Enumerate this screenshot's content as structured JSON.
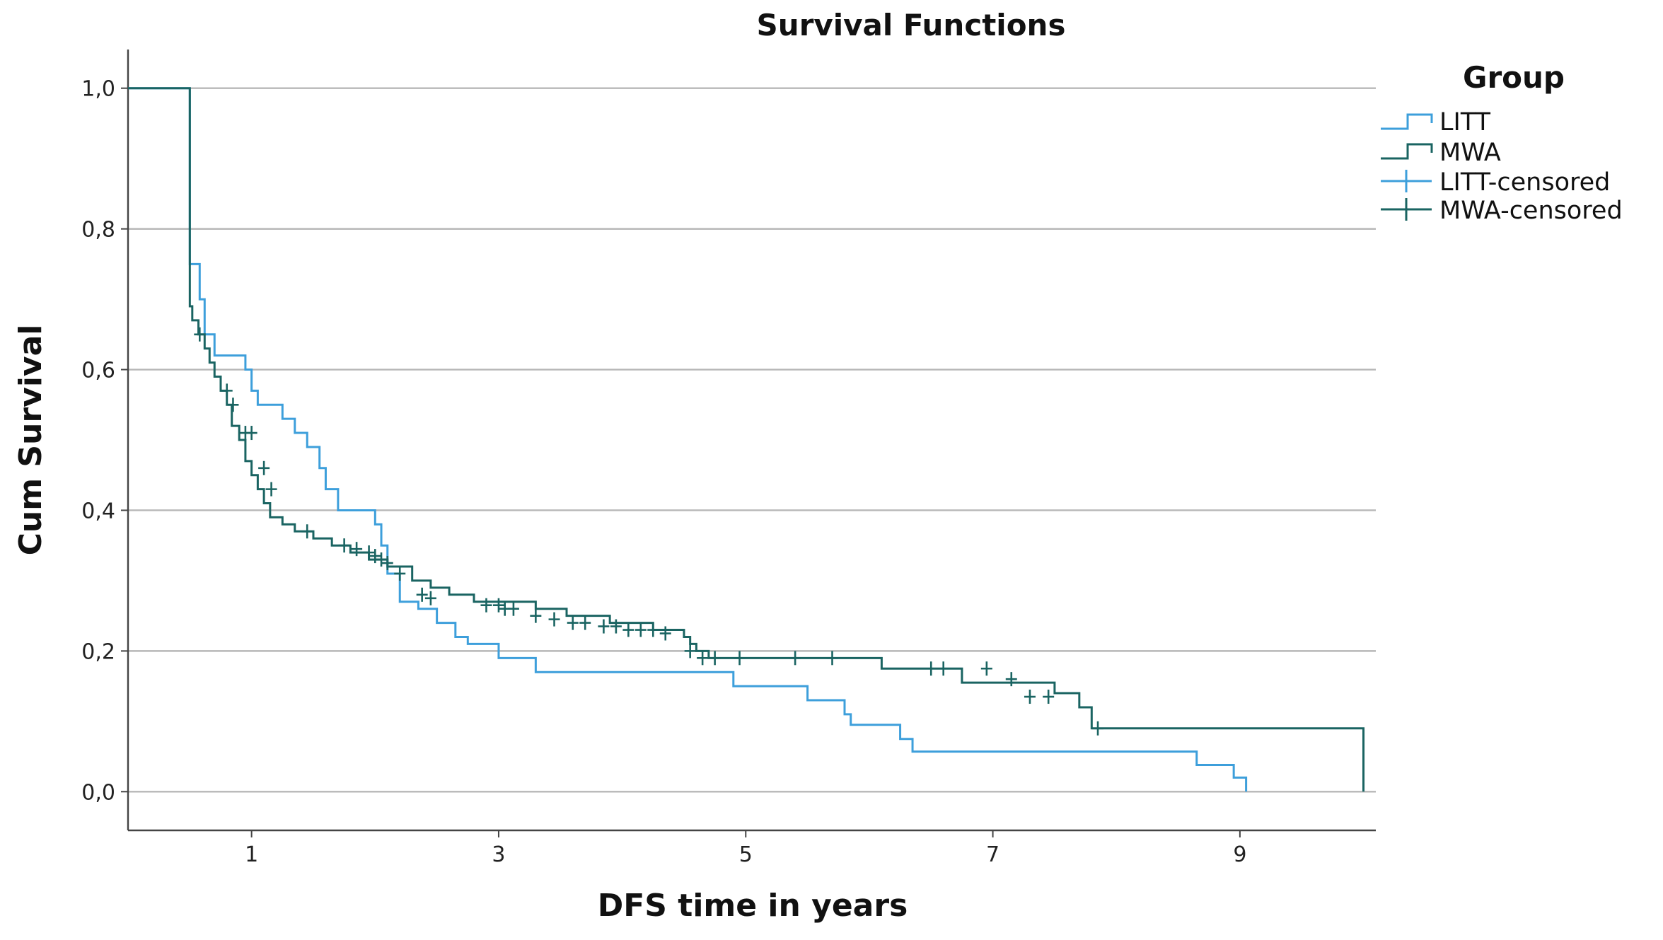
{
  "chart_data": {
    "type": "line",
    "title": "Survival Functions",
    "xlabel": "DFS time in years",
    "ylabel": "Cum Survival",
    "xlim": [
      0.0,
      10.1
    ],
    "ylim": [
      -0.055,
      1.055
    ],
    "x_ticks": [
      1,
      3,
      5,
      7,
      9
    ],
    "x_tick_labels": [
      "1",
      "3",
      "5",
      "7",
      "9"
    ],
    "y_ticks": [
      0.0,
      0.2,
      0.4,
      0.6,
      0.8,
      1.0
    ],
    "y_tick_labels": [
      "0,0",
      "0,2",
      "0,4",
      "0,6",
      "0,8",
      "1,0"
    ],
    "grid": "horizontal",
    "legend": {
      "title": "Group",
      "position": "right-top",
      "entries": [
        {
          "label": "LITT",
          "kind": "line",
          "series": "LITT"
        },
        {
          "label": "MWA",
          "kind": "line",
          "series": "MWA"
        },
        {
          "label": "LITT-censored",
          "kind": "censor",
          "series": "LITT"
        },
        {
          "label": "MWA-censored",
          "kind": "censor",
          "series": "MWA"
        }
      ]
    },
    "series": [
      {
        "name": "LITT",
        "color": "#3d9fdb",
        "steps": [
          [
            0.0,
            1.0
          ],
          [
            0.5,
            0.75
          ],
          [
            0.58,
            0.7
          ],
          [
            0.62,
            0.65
          ],
          [
            0.7,
            0.62
          ],
          [
            0.85,
            0.62
          ],
          [
            0.95,
            0.6
          ],
          [
            1.0,
            0.57
          ],
          [
            1.05,
            0.55
          ],
          [
            1.25,
            0.53
          ],
          [
            1.35,
            0.51
          ],
          [
            1.45,
            0.49
          ],
          [
            1.55,
            0.46
          ],
          [
            1.6,
            0.43
          ],
          [
            1.7,
            0.4
          ],
          [
            2.0,
            0.38
          ],
          [
            2.05,
            0.35
          ],
          [
            2.1,
            0.31
          ],
          [
            2.2,
            0.27
          ],
          [
            2.35,
            0.26
          ],
          [
            2.5,
            0.24
          ],
          [
            2.65,
            0.22
          ],
          [
            2.75,
            0.21
          ],
          [
            3.0,
            0.19
          ],
          [
            3.3,
            0.17
          ],
          [
            4.9,
            0.15
          ],
          [
            5.5,
            0.13
          ],
          [
            5.8,
            0.11
          ],
          [
            5.85,
            0.095
          ],
          [
            6.25,
            0.075
          ],
          [
            6.35,
            0.057
          ],
          [
            8.65,
            0.038
          ],
          [
            8.95,
            0.02
          ],
          [
            9.05,
            0.0
          ]
        ],
        "end_x": 9.05,
        "censored": []
      },
      {
        "name": "MWA",
        "color": "#1a6462",
        "steps": [
          [
            0.0,
            1.0
          ],
          [
            0.5,
            0.69
          ],
          [
            0.52,
            0.67
          ],
          [
            0.57,
            0.65
          ],
          [
            0.62,
            0.63
          ],
          [
            0.66,
            0.61
          ],
          [
            0.7,
            0.59
          ],
          [
            0.75,
            0.57
          ],
          [
            0.8,
            0.55
          ],
          [
            0.84,
            0.52
          ],
          [
            0.9,
            0.5
          ],
          [
            0.95,
            0.47
          ],
          [
            1.0,
            0.45
          ],
          [
            1.05,
            0.43
          ],
          [
            1.1,
            0.41
          ],
          [
            1.15,
            0.39
          ],
          [
            1.25,
            0.38
          ],
          [
            1.35,
            0.37
          ],
          [
            1.5,
            0.36
          ],
          [
            1.65,
            0.35
          ],
          [
            1.8,
            0.34
          ],
          [
            1.95,
            0.33
          ],
          [
            2.1,
            0.32
          ],
          [
            2.3,
            0.3
          ],
          [
            2.45,
            0.29
          ],
          [
            2.6,
            0.28
          ],
          [
            2.8,
            0.27
          ],
          [
            3.1,
            0.27
          ],
          [
            3.3,
            0.26
          ],
          [
            3.55,
            0.25
          ],
          [
            3.9,
            0.24
          ],
          [
            4.25,
            0.23
          ],
          [
            4.5,
            0.22
          ],
          [
            4.55,
            0.21
          ],
          [
            4.6,
            0.2
          ],
          [
            4.7,
            0.19
          ],
          [
            5.25,
            0.19
          ],
          [
            6.1,
            0.175
          ],
          [
            6.75,
            0.155
          ],
          [
            7.5,
            0.14
          ],
          [
            7.7,
            0.12
          ],
          [
            7.8,
            0.09
          ],
          [
            10.0,
            0.0
          ]
        ],
        "end_x": 10.0,
        "censored": [
          [
            0.58,
            0.65
          ],
          [
            0.8,
            0.57
          ],
          [
            0.85,
            0.55
          ],
          [
            0.95,
            0.51
          ],
          [
            1.0,
            0.51
          ],
          [
            1.1,
            0.46
          ],
          [
            1.16,
            0.43
          ],
          [
            1.45,
            0.37
          ],
          [
            1.75,
            0.35
          ],
          [
            1.85,
            0.345
          ],
          [
            1.95,
            0.34
          ],
          [
            2.0,
            0.335
          ],
          [
            2.05,
            0.33
          ],
          [
            2.1,
            0.325
          ],
          [
            2.2,
            0.31
          ],
          [
            2.38,
            0.28
          ],
          [
            2.45,
            0.275
          ],
          [
            2.9,
            0.265
          ],
          [
            3.0,
            0.265
          ],
          [
            3.05,
            0.26
          ],
          [
            3.12,
            0.26
          ],
          [
            3.3,
            0.25
          ],
          [
            3.45,
            0.245
          ],
          [
            3.6,
            0.24
          ],
          [
            3.7,
            0.24
          ],
          [
            3.85,
            0.235
          ],
          [
            3.95,
            0.235
          ],
          [
            4.05,
            0.23
          ],
          [
            4.15,
            0.23
          ],
          [
            4.25,
            0.23
          ],
          [
            4.35,
            0.225
          ],
          [
            4.55,
            0.2
          ],
          [
            4.65,
            0.19
          ],
          [
            4.75,
            0.19
          ],
          [
            4.95,
            0.19
          ],
          [
            5.4,
            0.19
          ],
          [
            5.7,
            0.19
          ],
          [
            6.5,
            0.175
          ],
          [
            6.6,
            0.175
          ],
          [
            6.95,
            0.175
          ],
          [
            7.15,
            0.16
          ],
          [
            7.3,
            0.135
          ],
          [
            7.45,
            0.135
          ],
          [
            7.85,
            0.09
          ]
        ]
      }
    ]
  }
}
